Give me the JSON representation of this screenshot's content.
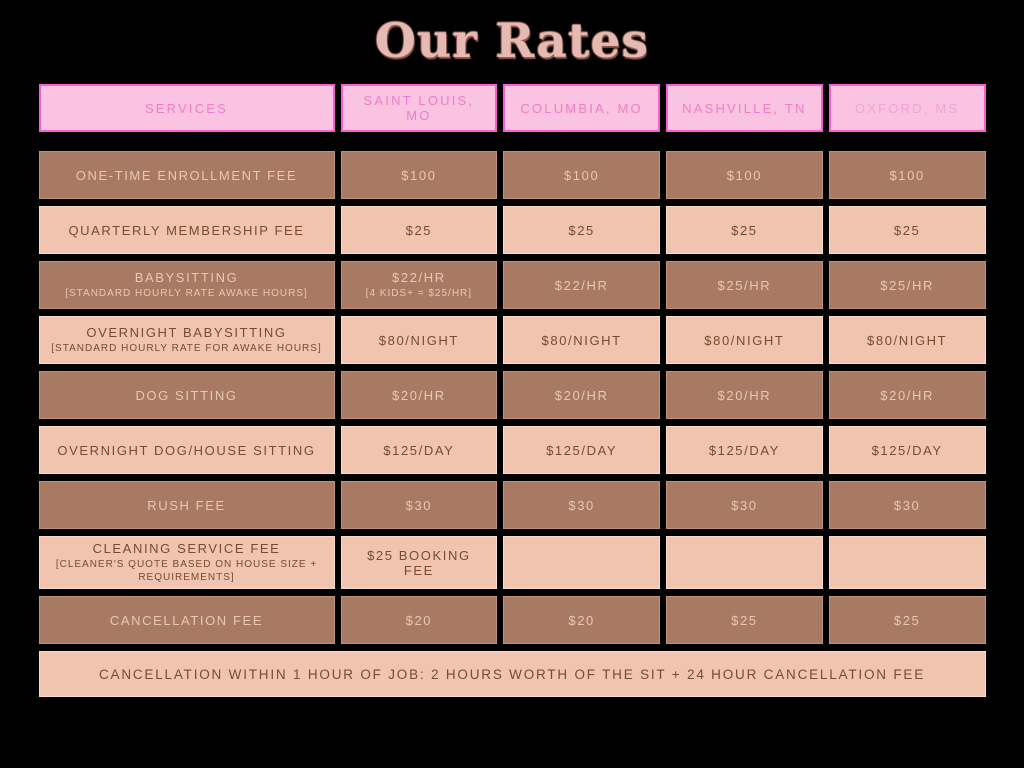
{
  "title": "Our Rates",
  "colors": {
    "page_bg": "#000000",
    "header_bg": "#fac3e2",
    "header_border": "#f85fce",
    "header_text": "#ee7ec6",
    "dark_bg": "#a87a63",
    "dark_text": "#e7c8b2",
    "light_bg": "#f0c4af",
    "light_text": "#7b4a30",
    "title_fill": "#e5bab3",
    "title_shadow": "#96594f"
  },
  "table": {
    "headers": [
      "SERVICES",
      "SAINT LOUIS, MO",
      "COLUMBIA, MO",
      "NASHVILLE, TN",
      "OXFORD, MS"
    ],
    "rows": [
      {
        "service": "ONE-TIME ENROLLMENT FEE",
        "note": "",
        "theme": "dark",
        "values": [
          {
            "text": "$100",
            "note": ""
          },
          {
            "text": "$100",
            "note": ""
          },
          {
            "text": "$100",
            "note": ""
          },
          {
            "text": "$100",
            "note": ""
          }
        ]
      },
      {
        "service": "QUARTERLY MEMBERSHIP FEE",
        "note": "",
        "theme": "light",
        "values": [
          {
            "text": "$25",
            "note": ""
          },
          {
            "text": "$25",
            "note": ""
          },
          {
            "text": "$25",
            "note": ""
          },
          {
            "text": "$25",
            "note": ""
          }
        ]
      },
      {
        "service": "BABYSITTING",
        "note": "[STANDARD HOURLY RATE AWAKE HOURS]",
        "theme": "dark",
        "values": [
          {
            "text": "$22/HR",
            "note": "[4 KIDS+ = $25/HR]"
          },
          {
            "text": "$22/HR",
            "note": ""
          },
          {
            "text": "$25/HR",
            "note": ""
          },
          {
            "text": "$25/HR",
            "note": ""
          }
        ]
      },
      {
        "service": "OVERNIGHT BABYSITTING",
        "note": "[STANDARD HOURLY RATE FOR AWAKE HOURS]",
        "theme": "light",
        "values": [
          {
            "text": "$80/NIGHT",
            "note": ""
          },
          {
            "text": "$80/NIGHT",
            "note": ""
          },
          {
            "text": "$80/NIGHT",
            "note": ""
          },
          {
            "text": "$80/NIGHT",
            "note": ""
          }
        ]
      },
      {
        "service": "DOG SITTING",
        "note": "",
        "theme": "dark",
        "values": [
          {
            "text": "$20/HR",
            "note": ""
          },
          {
            "text": "$20/HR",
            "note": ""
          },
          {
            "text": "$20/HR",
            "note": ""
          },
          {
            "text": "$20/HR",
            "note": ""
          }
        ]
      },
      {
        "service": "OVERNIGHT DOG/HOUSE SITTING",
        "note": "",
        "theme": "light",
        "values": [
          {
            "text": "$125/DAY",
            "note": ""
          },
          {
            "text": "$125/DAY",
            "note": ""
          },
          {
            "text": "$125/DAY",
            "note": ""
          },
          {
            "text": "$125/DAY",
            "note": ""
          }
        ]
      },
      {
        "service": "RUSH FEE",
        "note": "",
        "theme": "dark",
        "values": [
          {
            "text": "$30",
            "note": ""
          },
          {
            "text": "$30",
            "note": ""
          },
          {
            "text": "$30",
            "note": ""
          },
          {
            "text": "$30",
            "note": ""
          }
        ]
      },
      {
        "service": "CLEANING SERVICE FEE",
        "note": "[CLEANER'S QUOTE BASED ON HOUSE SIZE + REQUIREMENTS]",
        "theme": "light",
        "values": [
          {
            "text": "$25 BOOKING FEE",
            "note": ""
          },
          {
            "text": "",
            "note": ""
          },
          {
            "text": "",
            "note": ""
          },
          {
            "text": "",
            "note": ""
          }
        ]
      },
      {
        "service": "CANCELLATION FEE",
        "note": "",
        "theme": "dark",
        "values": [
          {
            "text": "$20",
            "note": ""
          },
          {
            "text": "$20",
            "note": ""
          },
          {
            "text": "$25",
            "note": ""
          },
          {
            "text": "$25",
            "note": ""
          }
        ]
      }
    ]
  },
  "banner": {
    "text": "CANCELLATION WITHIN 1 HOUR OF JOB: 2 HOURS WORTH OF THE SIT + 24 HOUR CANCELLATION FEE"
  }
}
